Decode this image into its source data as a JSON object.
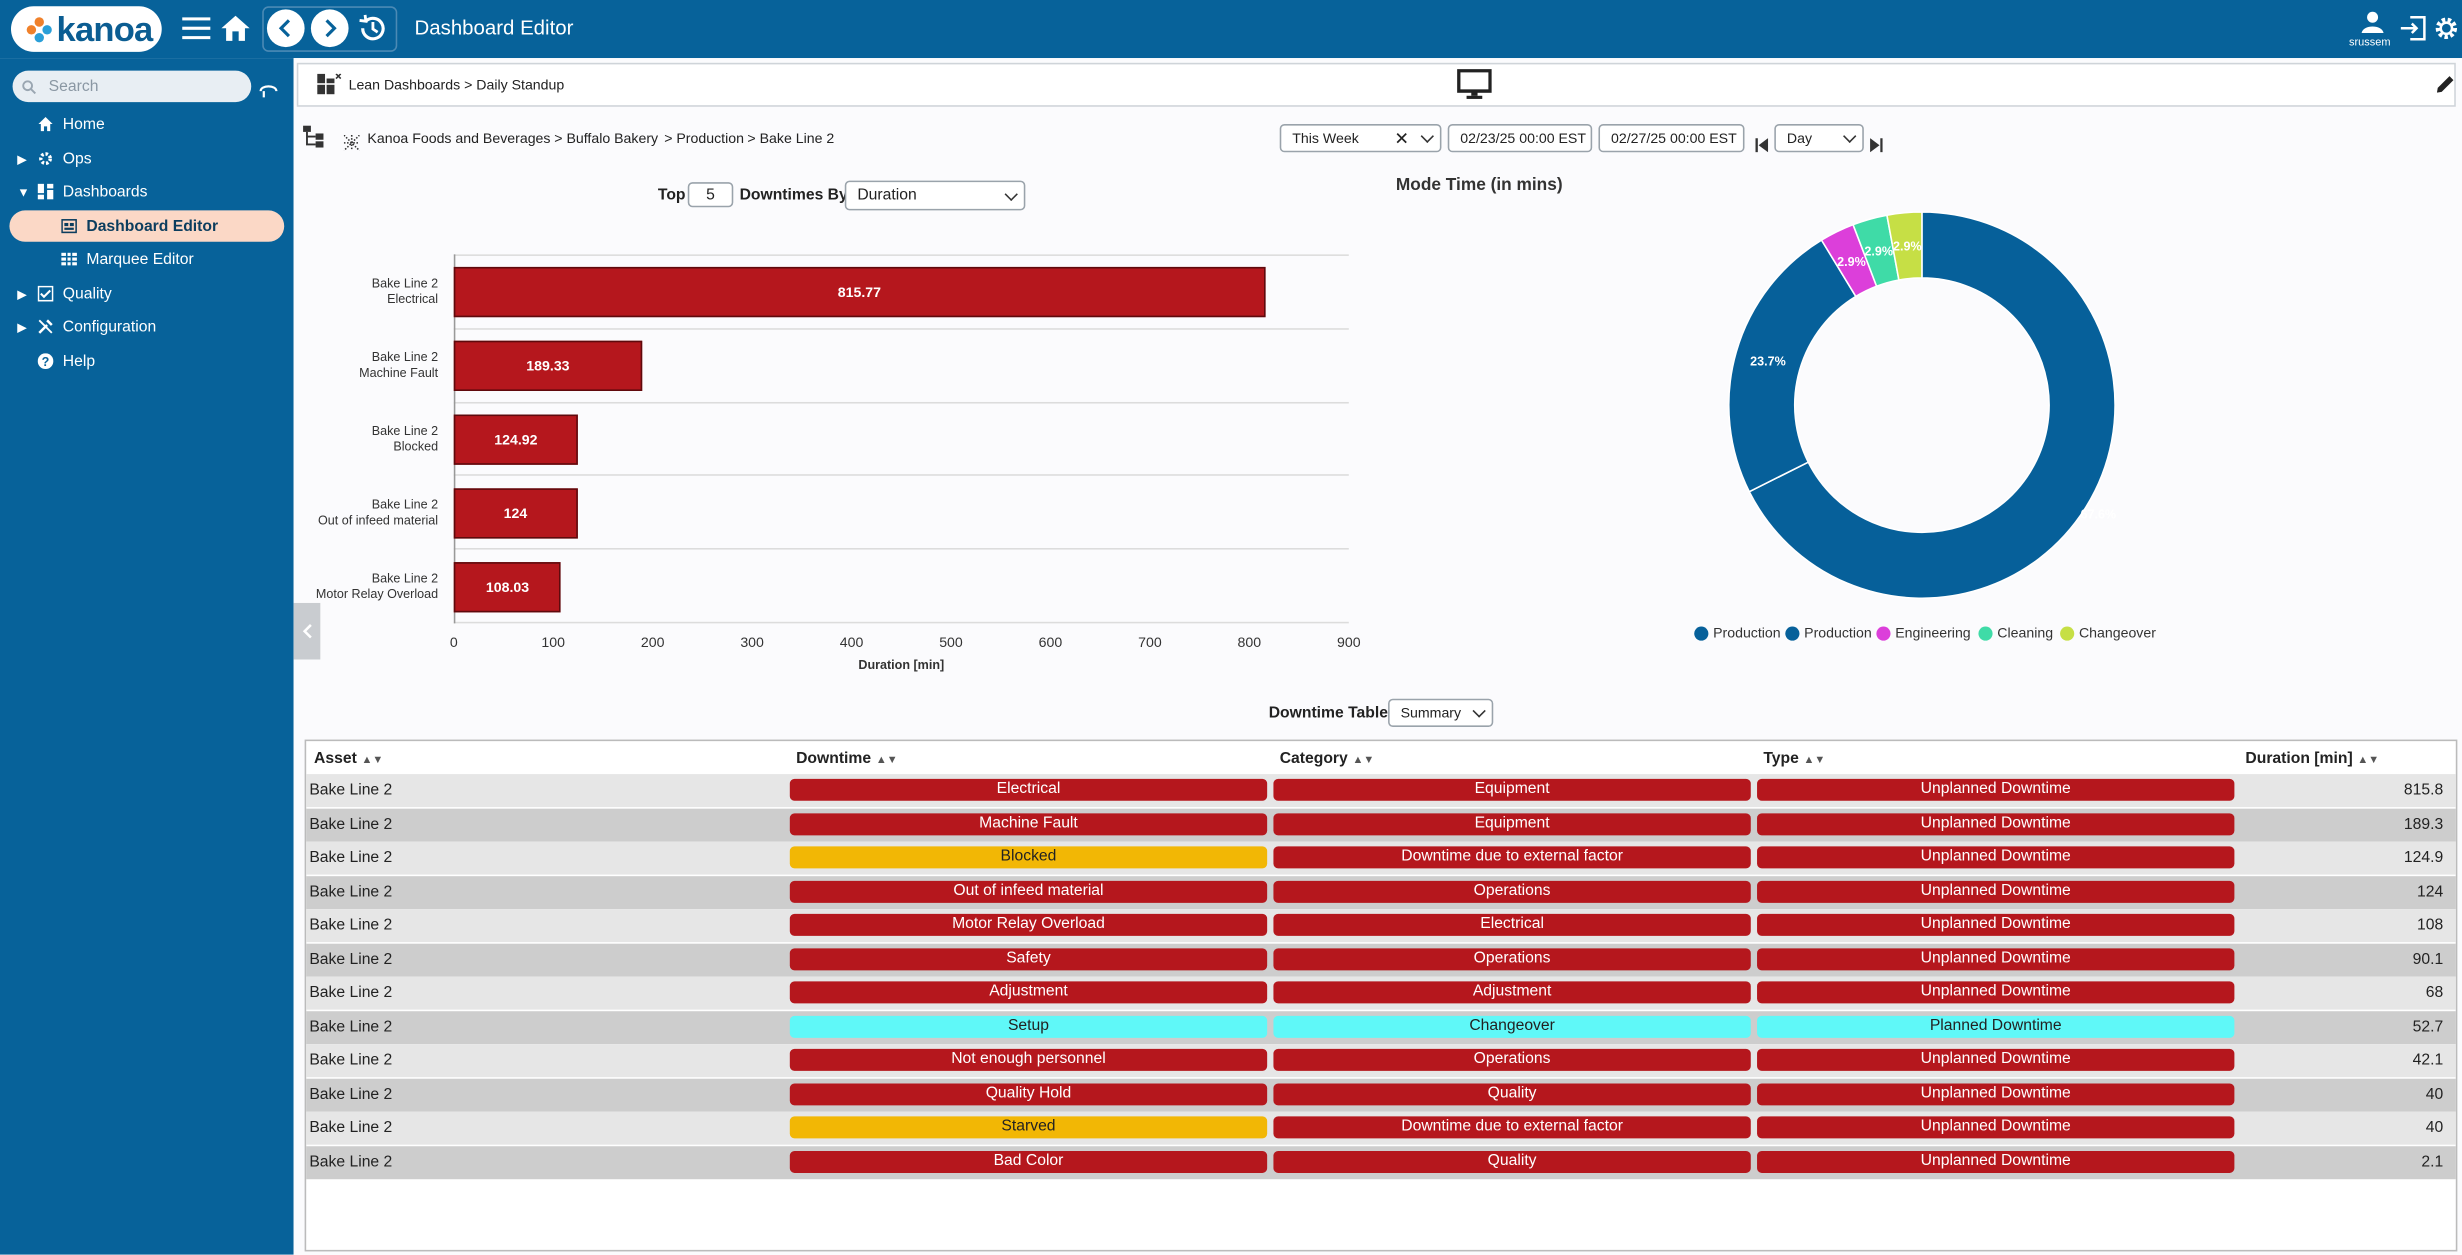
{
  "app": {
    "logo_text": "kanoa",
    "title": "Dashboard Editor",
    "user": "srussem"
  },
  "sidebar": {
    "search_placeholder": "Search",
    "items": [
      {
        "label": "Home",
        "icon": "home-icon"
      },
      {
        "label": "Ops",
        "icon": "ops-icon"
      },
      {
        "label": "Dashboards",
        "icon": "dashboards-icon"
      },
      {
        "label": "Dashboard Editor",
        "icon": "dashboard-editor-icon"
      },
      {
        "label": "Marquee Editor",
        "icon": "marquee-icon"
      },
      {
        "label": "Quality",
        "icon": "quality-icon"
      },
      {
        "label": "Configuration",
        "icon": "configuration-icon"
      },
      {
        "label": "Help",
        "icon": "help-icon"
      }
    ]
  },
  "breadcrumb": {
    "path": "Lean Dashboards > Daily Standup"
  },
  "asset_path": {
    "company": "Kanoa Foods and Beverages",
    "site": "> Buffalo Bakery",
    "area": "> Production",
    "line": "> Bake Line 2"
  },
  "filters": {
    "range": "This Week",
    "start": "02/23/25 00:00 EST",
    "end": "02/27/25 00:00 EST",
    "interval": "Day"
  },
  "bar_controls": {
    "top_label": "Top",
    "top_n": "5",
    "by_label": "Downtimes By",
    "by_value": "Duration"
  },
  "chart_data": [
    {
      "type": "bar",
      "orientation": "horizontal",
      "categories": [
        "Bake Line 2 Electrical",
        "Bake Line 2 Machine Fault",
        "Bake Line 2 Blocked",
        "Bake Line 2 Out of infeed material",
        "Bake Line 2 Motor Relay Overload"
      ],
      "category_lines": [
        [
          "Bake Line 2",
          "Electrical"
        ],
        [
          "Bake Line 2",
          "Machine Fault"
        ],
        [
          "Bake Line 2",
          "Blocked"
        ],
        [
          "Bake Line 2",
          "Out of infeed material"
        ],
        [
          "Bake Line 2",
          "Motor Relay Overload"
        ]
      ],
      "values": [
        815.77,
        189.33,
        124.92,
        124,
        108.03
      ],
      "value_labels": [
        "815.77",
        "189.33",
        "124.92",
        "124",
        "108.03"
      ],
      "xlabel": "Duration [min]",
      "xlim": [
        0,
        900
      ],
      "xticks": [
        "0",
        "100",
        "200",
        "300",
        "400",
        "500",
        "600",
        "700",
        "800",
        "900"
      ],
      "bar_color": "#b5171d"
    },
    {
      "type": "pie",
      "donut": true,
      "title": "Mode Time (in mins)",
      "labels": [
        "Production",
        "Production",
        "Engineering",
        "Cleaning",
        "Changeover"
      ],
      "values": [
        67.6,
        23.7,
        2.9,
        2.9,
        2.9
      ],
      "value_labels": [
        "67.6%",
        "23.7%",
        "2.9%",
        "2.9%",
        "2.9%"
      ],
      "colors": [
        "#06609a",
        "#06609a",
        "#dc3fda",
        "#3fdba7",
        "#c6df45"
      ],
      "legend": "bottom"
    }
  ],
  "table": {
    "title": "Downtime Table",
    "view": "Summary",
    "headers": [
      "Asset",
      "Downtime",
      "Category",
      "Type",
      "Duration [min]"
    ],
    "rows": [
      {
        "asset": "Bake Line 2",
        "downtime": "Electrical",
        "dcolor": "red",
        "category": "Equipment",
        "ccolor": "red",
        "type": "Unplanned Downtime",
        "tcolor": "red",
        "duration": "815.8"
      },
      {
        "asset": "Bake Line 2",
        "downtime": "Machine Fault",
        "dcolor": "red",
        "category": "Equipment",
        "ccolor": "red",
        "type": "Unplanned Downtime",
        "tcolor": "red",
        "duration": "189.3"
      },
      {
        "asset": "Bake Line 2",
        "downtime": "Blocked",
        "dcolor": "yellow",
        "category": "Downtime due to external factor",
        "ccolor": "red",
        "type": "Unplanned Downtime",
        "tcolor": "red",
        "duration": "124.9"
      },
      {
        "asset": "Bake Line 2",
        "downtime": "Out of infeed material",
        "dcolor": "red",
        "category": "Operations",
        "ccolor": "red",
        "type": "Unplanned Downtime",
        "tcolor": "red",
        "duration": "124"
      },
      {
        "asset": "Bake Line 2",
        "downtime": "Motor Relay Overload",
        "dcolor": "red",
        "category": "Electrical",
        "ccolor": "red",
        "type": "Unplanned Downtime",
        "tcolor": "red",
        "duration": "108"
      },
      {
        "asset": "Bake Line 2",
        "downtime": "Safety",
        "dcolor": "red",
        "category": "Operations",
        "ccolor": "red",
        "type": "Unplanned Downtime",
        "tcolor": "red",
        "duration": "90.1"
      },
      {
        "asset": "Bake Line 2",
        "downtime": "Adjustment",
        "dcolor": "red",
        "category": "Adjustment",
        "ccolor": "red",
        "type": "Unplanned Downtime",
        "tcolor": "red",
        "duration": "68"
      },
      {
        "asset": "Bake Line 2",
        "downtime": "Setup",
        "dcolor": "cyan",
        "category": "Changeover",
        "ccolor": "cyan",
        "type": "Planned Downtime",
        "tcolor": "cyan",
        "duration": "52.7"
      },
      {
        "asset": "Bake Line 2",
        "downtime": "Not enough personnel",
        "dcolor": "red",
        "category": "Operations",
        "ccolor": "red",
        "type": "Unplanned Downtime",
        "tcolor": "red",
        "duration": "42.1"
      },
      {
        "asset": "Bake Line 2",
        "downtime": "Quality Hold",
        "dcolor": "red",
        "category": "Quality",
        "ccolor": "red",
        "type": "Unplanned Downtime",
        "tcolor": "red",
        "duration": "40"
      },
      {
        "asset": "Bake Line 2",
        "downtime": "Starved",
        "dcolor": "yellow",
        "category": "Downtime due to external factor",
        "ccolor": "red",
        "type": "Unplanned Downtime",
        "tcolor": "red",
        "duration": "40"
      },
      {
        "asset": "Bake Line 2",
        "downtime": "Bad Color",
        "dcolor": "red",
        "category": "Quality",
        "ccolor": "red",
        "type": "Unplanned Downtime",
        "tcolor": "red",
        "duration": "2.1"
      }
    ]
  },
  "colors": {
    "header": "#07629a",
    "pill_red": "#b5171d",
    "pill_yellow": "#f2b705",
    "pill_cyan": "#5ff8f8",
    "active_nav": "#fbd8c6"
  }
}
